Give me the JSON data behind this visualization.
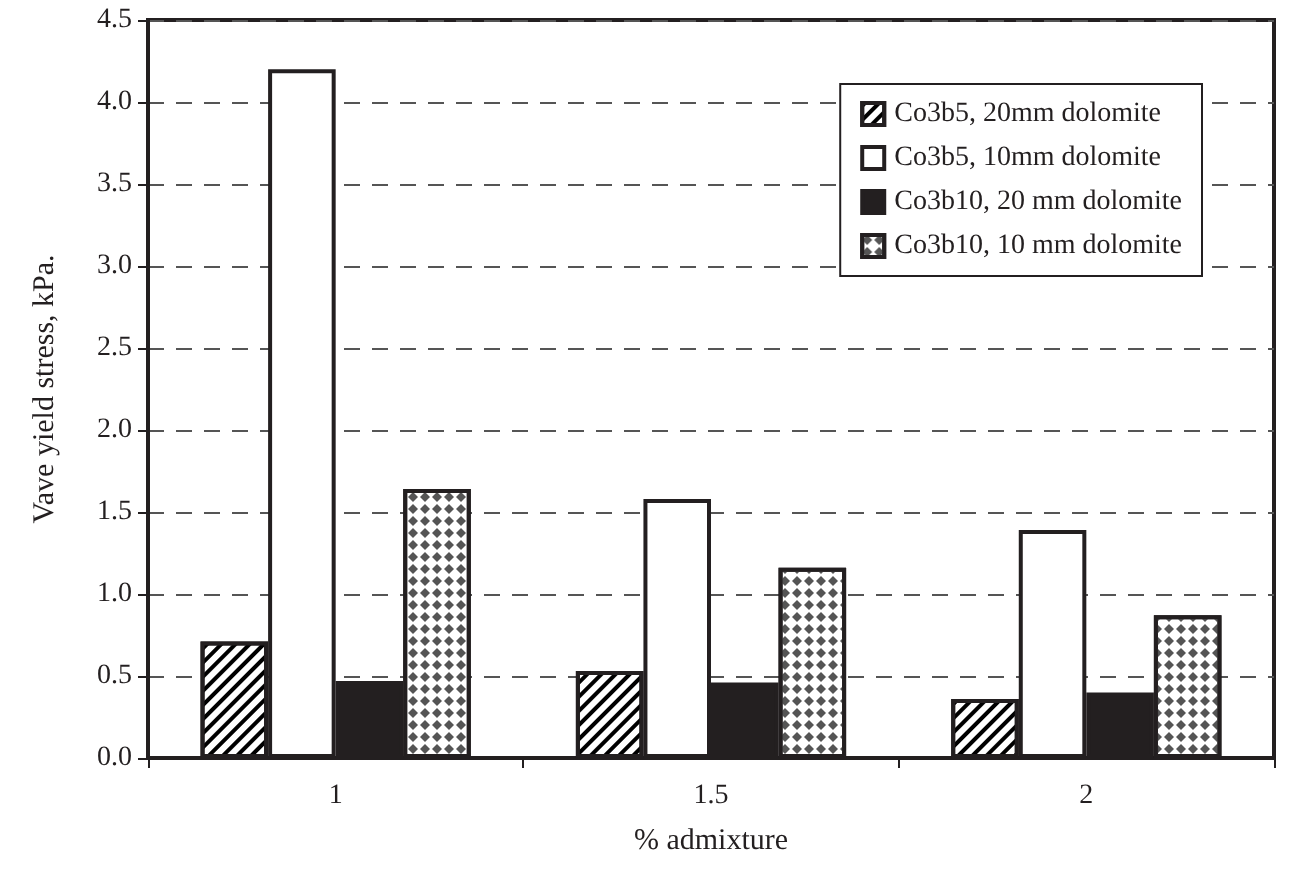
{
  "chart_data": {
    "type": "bar",
    "xlabel": "% admixture",
    "ylabel": "Vave yield stress, kPa.",
    "categories": [
      "1",
      "1.5",
      "2"
    ],
    "series": [
      {
        "name": "Co3b5, 20mm dolomite",
        "color": "#ffffff",
        "values": [
          0.71,
          0.53,
          0.36
        ]
      },
      {
        "name": "Co3b5, 10mm dolomite",
        "color": "#ffffff",
        "values": [
          4.2,
          1.58,
          1.39
        ]
      },
      {
        "name": "Co3b10, 20 mm dolomite",
        "color": "#231f20",
        "values": [
          0.47,
          0.46,
          0.4
        ]
      },
      {
        "name": "Co3b10, 10 mm dolomite",
        "color": "#ffffff",
        "values": [
          1.64,
          1.16,
          0.87
        ]
      }
    ],
    "ylim": [
      0,
      4.5
    ],
    "yticks": [
      {
        "value": 0,
        "label": "0.0"
      },
      {
        "value": 0.5,
        "label": "0.5"
      },
      {
        "value": 1,
        "label": "1.0"
      },
      {
        "value": 1.5,
        "label": "1.5"
      },
      {
        "value": 2,
        "label": "2.0"
      },
      {
        "value": 2.5,
        "label": "2.5"
      },
      {
        "value": 3,
        "label": "3.0"
      },
      {
        "value": 3.5,
        "label": "3.5"
      },
      {
        "value": 4,
        "label": "4.0"
      },
      {
        "value": 4.5,
        "label": "4.5"
      }
    ],
    "grid": "y",
    "legend": "top right"
  }
}
